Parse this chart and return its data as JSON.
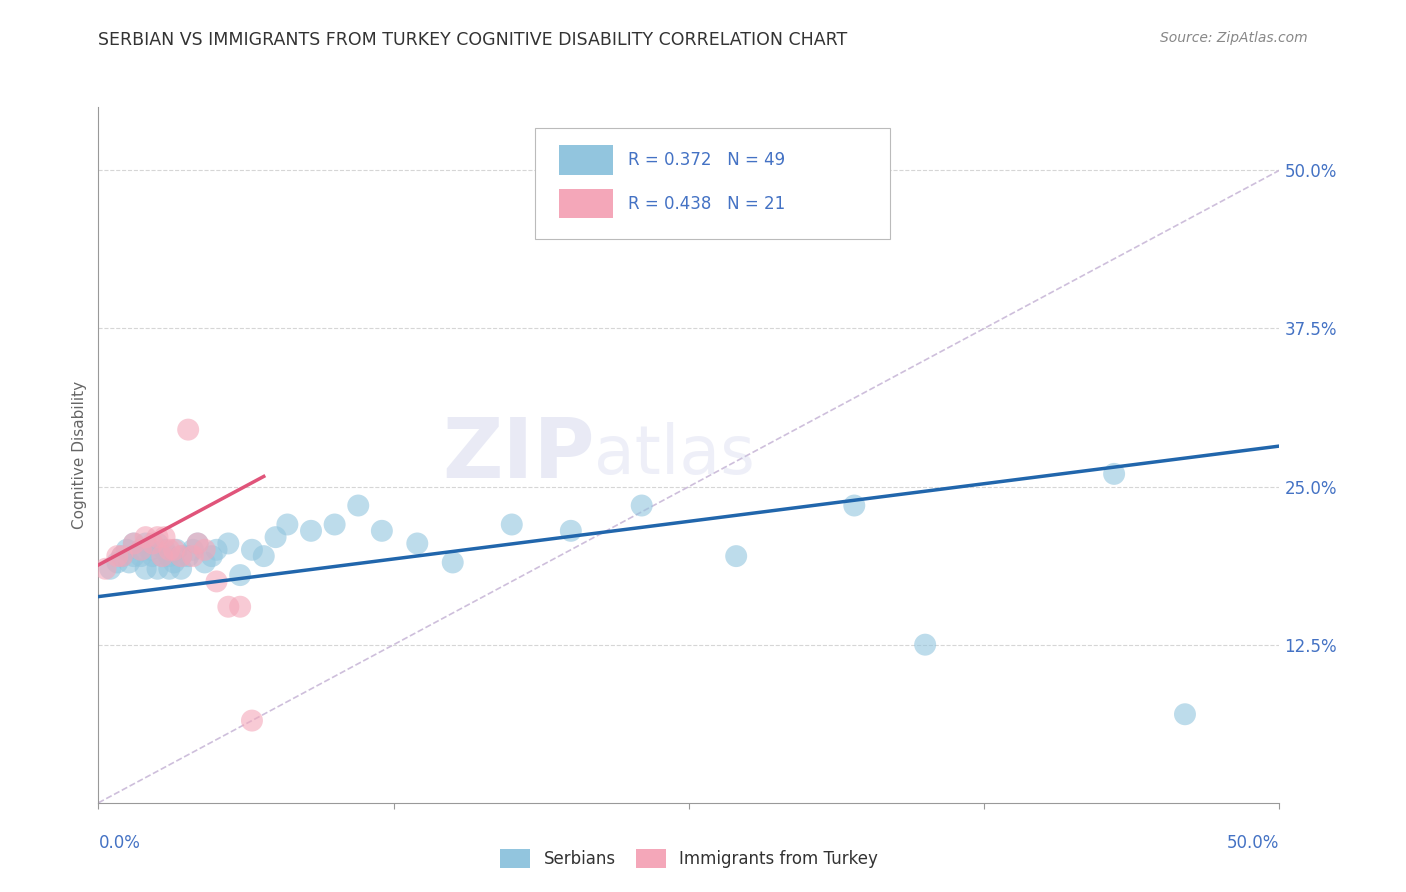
{
  "title": "SERBIAN VS IMMIGRANTS FROM TURKEY COGNITIVE DISABILITY CORRELATION CHART",
  "source": "Source: ZipAtlas.com",
  "ylabel": "Cognitive Disability",
  "right_yticks": [
    "50.0%",
    "37.5%",
    "25.0%",
    "12.5%"
  ],
  "right_ytick_vals": [
    0.5,
    0.375,
    0.25,
    0.125
  ],
  "xlim": [
    0.0,
    0.5
  ],
  "ylim": [
    0.0,
    0.55
  ],
  "legend_blue_r": "R = 0.372",
  "legend_blue_n": "N = 49",
  "legend_pink_r": "R = 0.438",
  "legend_pink_n": "N = 21",
  "legend_label_blue": "Serbians",
  "legend_label_pink": "Immigrants from Turkey",
  "blue_color": "#92c5de",
  "pink_color": "#f4a7b9",
  "line_blue_color": "#2166ac",
  "line_pink_color": "#e0547a",
  "diag_color": "#c9b8d8",
  "watermark_zip": "ZIP",
  "watermark_atlas": "atlas",
  "serbian_x": [
    0.005,
    0.008,
    0.01,
    0.012,
    0.013,
    0.015,
    0.015,
    0.018,
    0.018,
    0.02,
    0.02,
    0.022,
    0.023,
    0.025,
    0.025,
    0.027,
    0.028,
    0.03,
    0.03,
    0.032,
    0.033,
    0.035,
    0.035,
    0.038,
    0.04,
    0.042,
    0.045,
    0.048,
    0.05,
    0.055,
    0.06,
    0.065,
    0.07,
    0.075,
    0.08,
    0.09,
    0.1,
    0.11,
    0.12,
    0.135,
    0.15,
    0.175,
    0.2,
    0.23,
    0.27,
    0.32,
    0.35,
    0.43,
    0.46
  ],
  "serbian_y": [
    0.185,
    0.19,
    0.195,
    0.2,
    0.19,
    0.195,
    0.205,
    0.2,
    0.195,
    0.185,
    0.205,
    0.2,
    0.195,
    0.185,
    0.205,
    0.195,
    0.2,
    0.185,
    0.195,
    0.19,
    0.2,
    0.195,
    0.185,
    0.195,
    0.2,
    0.205,
    0.19,
    0.195,
    0.2,
    0.205,
    0.18,
    0.2,
    0.195,
    0.21,
    0.22,
    0.215,
    0.22,
    0.235,
    0.215,
    0.205,
    0.19,
    0.22,
    0.215,
    0.235,
    0.195,
    0.235,
    0.125,
    0.26,
    0.07
  ],
  "turkey_x": [
    0.003,
    0.008,
    0.01,
    0.015,
    0.018,
    0.02,
    0.023,
    0.025,
    0.027,
    0.028,
    0.03,
    0.032,
    0.035,
    0.038,
    0.04,
    0.042,
    0.045,
    0.05,
    0.055,
    0.06,
    0.065
  ],
  "turkey_y": [
    0.185,
    0.195,
    0.195,
    0.205,
    0.2,
    0.21,
    0.205,
    0.21,
    0.195,
    0.21,
    0.2,
    0.2,
    0.195,
    0.295,
    0.195,
    0.205,
    0.2,
    0.175,
    0.155,
    0.155,
    0.065
  ],
  "blue_line_x0": 0.0,
  "blue_line_x1": 0.5,
  "blue_line_y0": 0.163,
  "blue_line_y1": 0.282,
  "pink_line_x0": 0.0,
  "pink_line_x1": 0.07,
  "pink_line_y0": 0.188,
  "pink_line_y1": 0.258,
  "diag_line_x": [
    0.0,
    0.5
  ],
  "diag_line_y": [
    0.0,
    0.5
  ]
}
